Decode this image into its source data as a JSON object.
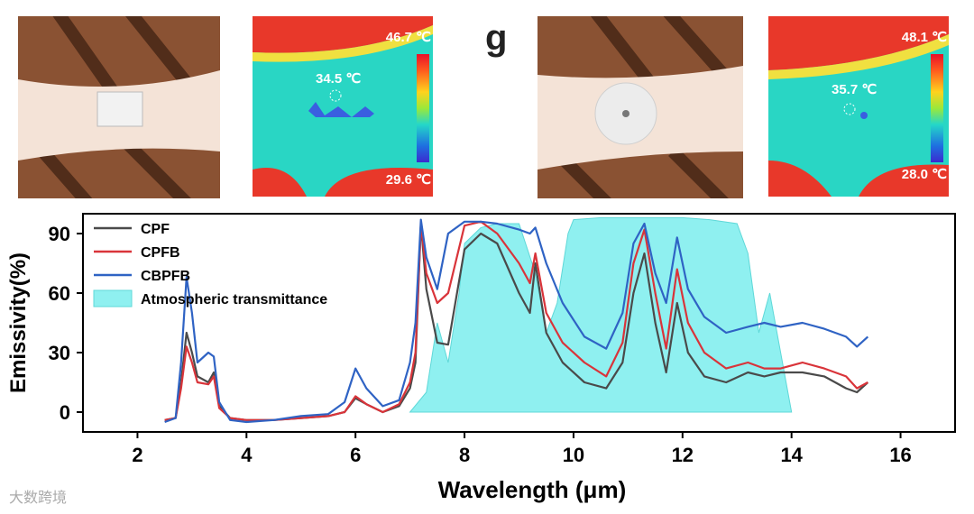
{
  "panel_label": "g",
  "thermal_left": {
    "max": "46.7 ℃",
    "center": "34.5 ℃",
    "min": "29.6 ℃"
  },
  "thermal_right": {
    "max": "48.1 ℃",
    "center": "35.7 ℃",
    "min": "28.0 ℃"
  },
  "watermark": "大数跨境",
  "chart_data": {
    "type": "line",
    "xlabel": "Wavelength (μm)",
    "ylabel": "Emissivity(%)",
    "xlim": [
      1,
      17
    ],
    "ylim": [
      -10,
      100
    ],
    "xticks": [
      "2",
      "4",
      "6",
      "8",
      "10",
      "12",
      "14",
      "16"
    ],
    "yticks": [
      "0",
      "30",
      "60",
      "90"
    ],
    "legend_position": "top-left",
    "series": [
      {
        "name": "CPF",
        "color": "#4a4a4a",
        "x": [
          2.5,
          2.7,
          2.8,
          2.9,
          3.0,
          3.1,
          3.3,
          3.4,
          3.5,
          3.7,
          4.0,
          4.5,
          5.0,
          5.5,
          5.8,
          6.0,
          6.2,
          6.5,
          6.8,
          7.0,
          7.1,
          7.2,
          7.3,
          7.5,
          7.7,
          8.0,
          8.3,
          8.6,
          9.0,
          9.2,
          9.3,
          9.5,
          9.8,
          10.2,
          10.6,
          10.9,
          11.1,
          11.3,
          11.5,
          11.7,
          11.9,
          12.1,
          12.4,
          12.8,
          13.2,
          13.5,
          13.8,
          14.2,
          14.6,
          15.0,
          15.2,
          15.4
        ],
        "values": [
          -4,
          -3,
          15,
          40,
          30,
          18,
          15,
          20,
          3,
          -3,
          -4,
          -4,
          -3,
          -2,
          0,
          7,
          4,
          0,
          3,
          12,
          25,
          95,
          62,
          35,
          34,
          82,
          90,
          85,
          60,
          50,
          75,
          40,
          25,
          15,
          12,
          25,
          60,
          80,
          45,
          20,
          55,
          30,
          18,
          15,
          20,
          18,
          20,
          20,
          18,
          12,
          10,
          15
        ]
      },
      {
        "name": "CPFB",
        "color": "#d9343a",
        "x": [
          2.5,
          2.7,
          2.8,
          2.9,
          3.0,
          3.1,
          3.3,
          3.4,
          3.5,
          3.7,
          4.0,
          4.5,
          5.0,
          5.5,
          5.8,
          6.0,
          6.2,
          6.5,
          6.8,
          7.0,
          7.1,
          7.2,
          7.3,
          7.5,
          7.7,
          8.0,
          8.3,
          8.6,
          9.0,
          9.2,
          9.3,
          9.5,
          9.8,
          10.2,
          10.6,
          10.9,
          11.1,
          11.3,
          11.5,
          11.7,
          11.9,
          12.1,
          12.4,
          12.8,
          13.2,
          13.5,
          13.8,
          14.2,
          14.6,
          15.0,
          15.2,
          15.4
        ],
        "values": [
          -4,
          -3,
          12,
          33,
          25,
          15,
          14,
          18,
          2,
          -3,
          -4,
          -4,
          -3,
          -2,
          0,
          8,
          4,
          0,
          4,
          15,
          30,
          95,
          70,
          55,
          60,
          94,
          96,
          90,
          75,
          65,
          80,
          50,
          35,
          25,
          18,
          35,
          75,
          92,
          60,
          32,
          72,
          45,
          30,
          22,
          25,
          22,
          22,
          25,
          22,
          18,
          12,
          15
        ]
      },
      {
        "name": "CBPFB",
        "color": "#2f63c4",
        "x": [
          2.5,
          2.7,
          2.8,
          2.9,
          3.0,
          3.1,
          3.3,
          3.4,
          3.5,
          3.7,
          4.0,
          4.5,
          5.0,
          5.5,
          5.8,
          6.0,
          6.2,
          6.5,
          6.8,
          7.0,
          7.1,
          7.2,
          7.3,
          7.5,
          7.7,
          8.0,
          8.3,
          8.6,
          9.0,
          9.2,
          9.3,
          9.5,
          9.8,
          10.2,
          10.6,
          10.9,
          11.1,
          11.3,
          11.5,
          11.7,
          11.9,
          12.1,
          12.4,
          12.8,
          13.2,
          13.5,
          13.8,
          14.2,
          14.6,
          15.0,
          15.2,
          15.4
        ],
        "values": [
          -5,
          -3,
          25,
          68,
          50,
          25,
          30,
          28,
          5,
          -4,
          -5,
          -4,
          -2,
          -1,
          5,
          22,
          12,
          3,
          6,
          25,
          45,
          97,
          78,
          62,
          90,
          96,
          96,
          95,
          92,
          90,
          93,
          75,
          55,
          38,
          32,
          50,
          85,
          95,
          70,
          55,
          88,
          62,
          48,
          40,
          43,
          45,
          43,
          45,
          42,
          38,
          33,
          38
        ]
      }
    ],
    "area_series": {
      "name": "Atmospheric transmittance",
      "color": "#8ff0f0",
      "x": [
        7.0,
        7.3,
        7.5,
        7.7,
        7.9,
        8.0,
        8.3,
        8.6,
        9.0,
        9.3,
        9.5,
        9.7,
        9.9,
        10.0,
        10.5,
        11.0,
        11.5,
        12.0,
        12.5,
        13.0,
        13.2,
        13.4,
        13.6,
        13.8,
        14.0
      ],
      "values": [
        0,
        10,
        45,
        25,
        60,
        85,
        93,
        95,
        95,
        70,
        40,
        55,
        90,
        97,
        98,
        98,
        98,
        98,
        97,
        95,
        80,
        40,
        60,
        30,
        0
      ]
    }
  }
}
